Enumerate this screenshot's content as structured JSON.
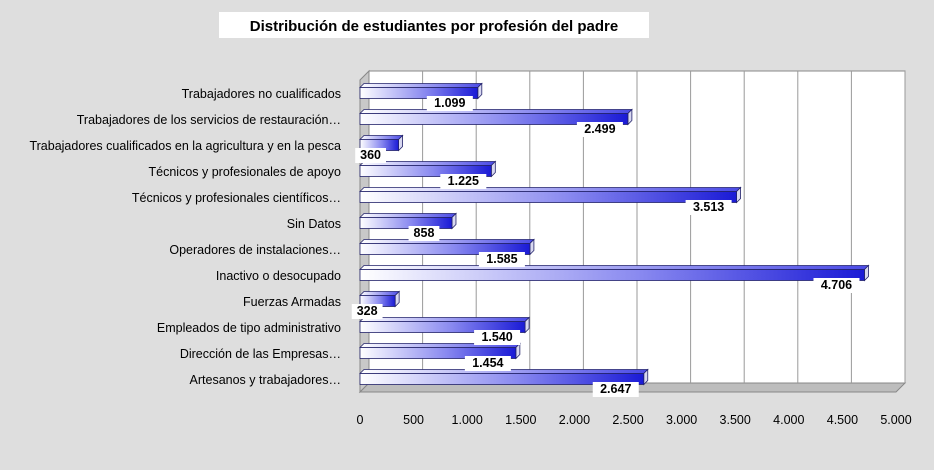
{
  "chart_data": {
    "type": "bar",
    "orientation": "horizontal",
    "title": "Distribución de estudiantes por profesión del padre",
    "xlabel": "",
    "ylabel": "",
    "xlim": [
      0,
      5000
    ],
    "x_ticks": [
      0,
      500,
      1000,
      1500,
      2000,
      2500,
      3000,
      3500,
      4000,
      4500,
      5000
    ],
    "x_tick_labels": [
      "0",
      "500",
      "1.000",
      "1.500",
      "2.000",
      "2.500",
      "3.000",
      "3.500",
      "4.000",
      "4.500",
      "5.000"
    ],
    "grid": "vertical",
    "style": "3d",
    "categories": [
      "Trabajadores no cualificados",
      "Trabajadores de los servicios de restauración…",
      "Trabajadores cualificados en la agricultura y en la pesca",
      "Técnicos y profesionales de apoyo",
      "Técnicos y profesionales científicos…",
      "Sin Datos",
      "Operadores de instalaciones…",
      "Inactivo o desocupado",
      "Fuerzas Armadas",
      "Empleados de tipo administrativo",
      "Dirección de las Empresas…",
      "Artesanos y trabajadores…"
    ],
    "values": [
      1099,
      2499,
      360,
      1225,
      3513,
      858,
      1585,
      4706,
      328,
      1540,
      1454,
      2647
    ],
    "value_labels": [
      "1.099",
      "2.499",
      "360",
      "1.225",
      "3.513",
      "858",
      "1.585",
      "4.706",
      "328",
      "1.540",
      "1.454",
      "2.647"
    ],
    "colors": {
      "bar_dark": "#1a1ad6",
      "bar_light": "#ffffff",
      "grid": "#9a9a9a",
      "plot_bg": "#ffffff",
      "page_bg": "#dedede"
    }
  }
}
